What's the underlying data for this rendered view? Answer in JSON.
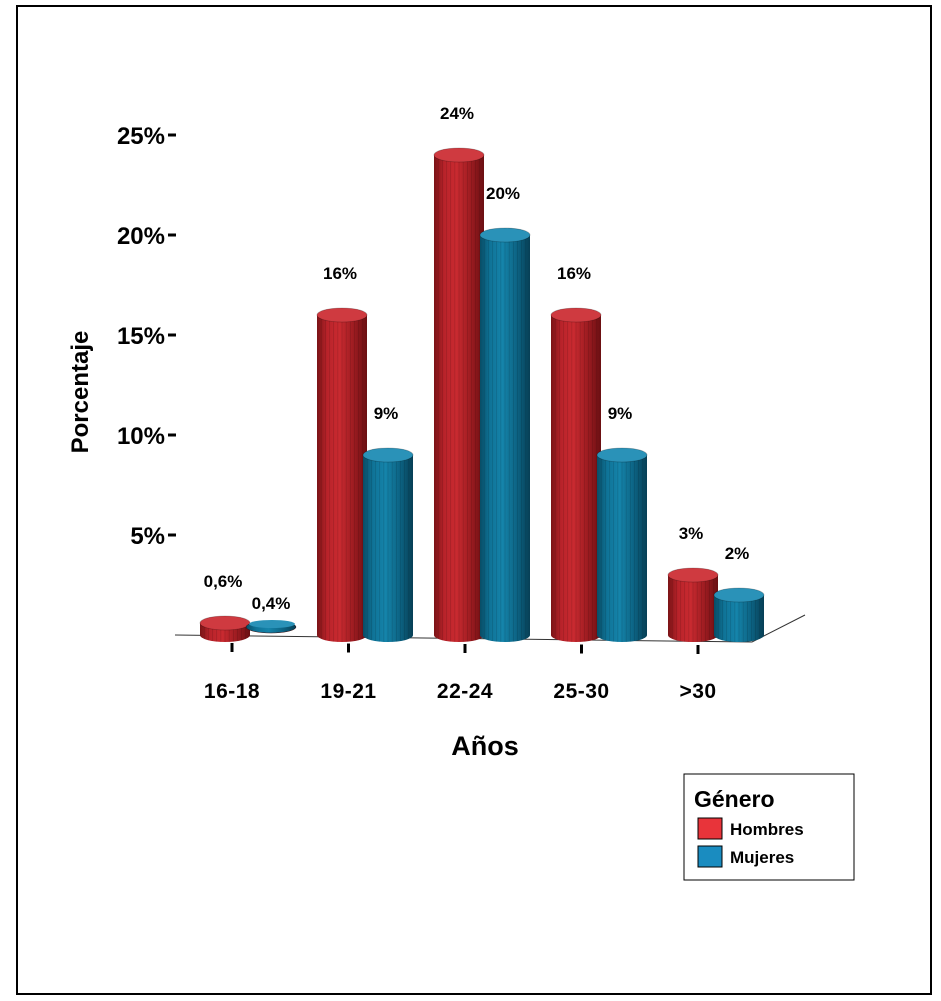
{
  "chart_data": {
    "type": "bar",
    "categories": [
      "16-18",
      "19-21",
      "22-24",
      "25-30",
      ">30"
    ],
    "series": [
      {
        "name": "Hombres",
        "color": "#b01f24",
        "values": [
          0.6,
          16,
          24,
          16,
          3
        ],
        "labels": [
          "0,6%",
          "16%",
          "24%",
          "16%",
          "3%"
        ]
      },
      {
        "name": "Mujeres",
        "color": "#0d6b8c",
        "values": [
          0.4,
          9,
          20,
          9,
          2
        ],
        "labels": [
          "0,4%",
          "9%",
          "20%",
          "9%",
          "2%"
        ]
      }
    ],
    "xlabel": "Años",
    "ylabel": "Porcentaje",
    "yticks": [
      5,
      10,
      15,
      20,
      25
    ],
    "ytick_labels": [
      "5%",
      "10%",
      "15%",
      "20%",
      "25%"
    ],
    "ylim": [
      0,
      25
    ],
    "legend": {
      "title": "Género",
      "items": [
        {
          "label": "Hombres",
          "color": "#e8343a"
        },
        {
          "label": "Mujeres",
          "color": "#1a8cc0"
        }
      ],
      "position": "bottom-right"
    },
    "grid": false,
    "style": "3d-cylinder"
  }
}
